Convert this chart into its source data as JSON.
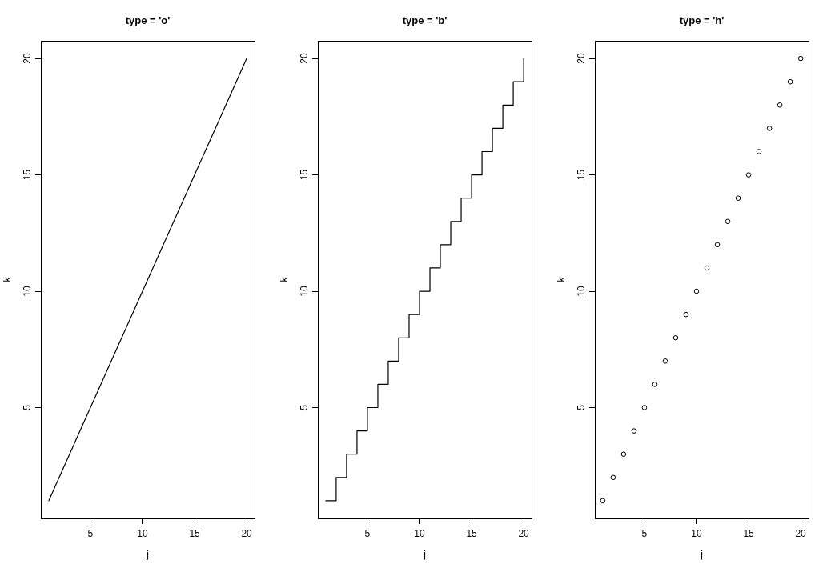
{
  "chart_data": [
    {
      "type": "line",
      "title": "type = 'o'",
      "xlabel": "j",
      "ylabel": "k",
      "x": [
        1,
        2,
        3,
        4,
        5,
        6,
        7,
        8,
        9,
        10,
        11,
        12,
        13,
        14,
        15,
        16,
        17,
        18,
        19,
        20
      ],
      "values": [
        1,
        2,
        3,
        4,
        5,
        6,
        7,
        8,
        9,
        10,
        11,
        12,
        13,
        14,
        15,
        16,
        17,
        18,
        19,
        20
      ],
      "color": "#000000",
      "xlim": [
        0.24,
        20.76
      ],
      "ylim": [
        0.24,
        20.76
      ],
      "xticks": [
        5,
        10,
        15,
        20
      ],
      "yticks": [
        5,
        10,
        15,
        20
      ]
    },
    {
      "type": "step",
      "title": "type = 'b'",
      "xlabel": "j",
      "ylabel": "k",
      "x": [
        1,
        2,
        3,
        4,
        5,
        6,
        7,
        8,
        9,
        10,
        11,
        12,
        13,
        14,
        15,
        16,
        17,
        18,
        19,
        20
      ],
      "values": [
        1,
        2,
        3,
        4,
        5,
        6,
        7,
        8,
        9,
        10,
        11,
        12,
        13,
        14,
        15,
        16,
        17,
        18,
        19,
        20
      ],
      "color": "#000000",
      "xlim": [
        0.24,
        20.76
      ],
      "ylim": [
        0.24,
        20.76
      ],
      "xticks": [
        5,
        10,
        15,
        20
      ],
      "yticks": [
        5,
        10,
        15,
        20
      ]
    },
    {
      "type": "scatter",
      "title": "type = 'h'",
      "xlabel": "j",
      "ylabel": "k",
      "x": [
        1,
        2,
        3,
        4,
        5,
        6,
        7,
        8,
        9,
        10,
        11,
        12,
        13,
        14,
        15,
        16,
        17,
        18,
        19,
        20
      ],
      "values": [
        1,
        2,
        3,
        4,
        5,
        6,
        7,
        8,
        9,
        10,
        11,
        12,
        13,
        14,
        15,
        16,
        17,
        18,
        19,
        20
      ],
      "color": "#000000",
      "marker": "circle",
      "xlim": [
        0.24,
        20.76
      ],
      "ylim": [
        0.24,
        20.76
      ],
      "xticks": [
        5,
        10,
        15,
        20
      ],
      "yticks": [
        5,
        10,
        15,
        20
      ]
    }
  ]
}
